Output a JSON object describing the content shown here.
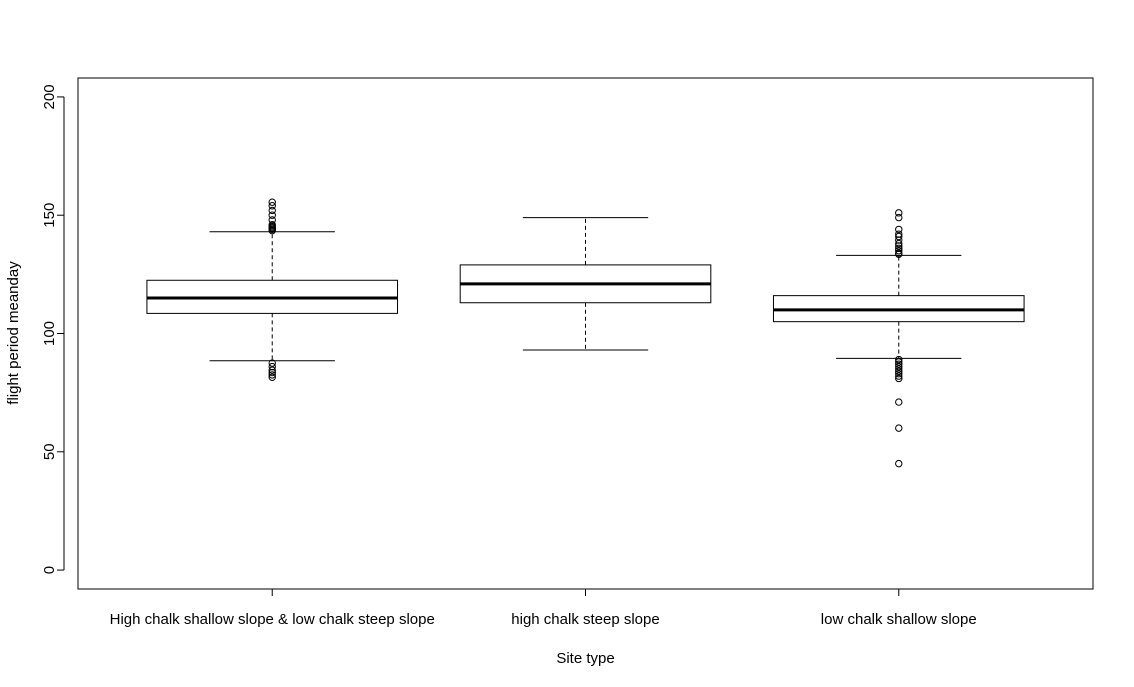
{
  "chart_data": {
    "type": "boxplot",
    "title": "",
    "xlabel": "Site type",
    "ylabel": "flight period meanday",
    "ylim": [
      -8,
      208
    ],
    "yticks": [
      0,
      50,
      100,
      150,
      200
    ],
    "grid": false,
    "categories": [
      "High chalk shallow slope & low chalk steep slope",
      "high chalk steep slope",
      "low chalk shallow slope"
    ],
    "boxes": [
      {
        "whisker_low": 88.5,
        "q1": 108.5,
        "median": 115,
        "q3": 122.5,
        "whisker_high": 143,
        "outliers": [
          81.5,
          82.5,
          83.5,
          84.5,
          86,
          87.5,
          143.5,
          144,
          144.5,
          145,
          145.5,
          146,
          148,
          150,
          152,
          154,
          155.5
        ]
      },
      {
        "whisker_low": 93,
        "q1": 113,
        "median": 121,
        "q3": 129,
        "whisker_high": 149,
        "outliers": []
      },
      {
        "whisker_low": 89.5,
        "q1": 105,
        "median": 110,
        "q3": 116,
        "whisker_high": 133,
        "outliers": [
          45,
          60,
          71,
          81,
          82,
          83,
          84,
          85,
          86,
          87,
          88,
          89,
          133.5,
          134,
          135,
          136,
          137,
          138,
          139.5,
          141,
          142,
          144,
          149,
          151
        ]
      }
    ]
  }
}
